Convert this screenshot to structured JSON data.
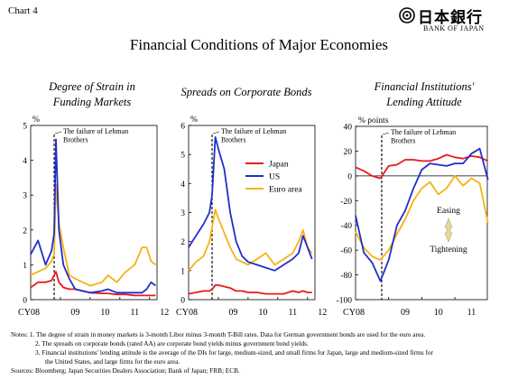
{
  "header": {
    "chart_label": "Chart 4",
    "title": "Financial Conditions of Major Economies",
    "logo_text": "日本銀行",
    "logo_subtext": "BANK OF JAPAN"
  },
  "colors": {
    "japan": "#e8181f",
    "us": "#1f2fc9",
    "euro": "#f5b30f",
    "axis": "#000000",
    "arrow": "#e8d9a0"
  },
  "notes": {
    "line1": "Notes:  1. The degree of strain in money markets is 3-month Libor minus 3-month T-Bill rates. Data for German government bonds are used for the euro area.",
    "line2": "2. The spreads on corporate bonds (rated AA) are corporate bond yields minus government bond yields.",
    "line3": "3. Financial institutions' lending attitude is the average of the DIs for large, medium-sized, and small firms for Japan, large and medium-sized firms for",
    "line4": "the United States, and large firms for the euro area.",
    "sources": "Sources: Bloomberg; Japan Securities Dealers Association; Bank of Japan; FRB; ECB."
  },
  "chart_data": [
    {
      "type": "line",
      "title": "Degree of Strain in Funding Markets",
      "unit": "%",
      "x_ticks": [
        "CY08",
        "09",
        "10",
        "11",
        "12"
      ],
      "ylim": [
        0,
        5
      ],
      "y_ticks": [
        0,
        1,
        2,
        3,
        4,
        5
      ],
      "annotation": "The failure of Lehman Brothers",
      "x": [
        2008.0,
        2008.25,
        2008.5,
        2008.7,
        2008.79,
        2008.85,
        2008.95,
        2009.1,
        2009.3,
        2009.5,
        2009.75,
        2010.0,
        2010.4,
        2010.6,
        2010.9,
        2011.2,
        2011.5,
        2011.75,
        2011.9,
        2012.05,
        2012.2
      ],
      "series": [
        {
          "name": "Japan",
          "values": [
            0.35,
            0.5,
            0.5,
            0.55,
            0.7,
            0.8,
            0.5,
            0.35,
            0.3,
            0.3,
            0.25,
            0.2,
            0.18,
            0.18,
            0.15,
            0.15,
            0.12,
            0.12,
            0.12,
            0.12,
            0.12
          ]
        },
        {
          "name": "US",
          "values": [
            1.3,
            1.7,
            1.0,
            1.4,
            1.9,
            4.6,
            2.0,
            1.0,
            0.6,
            0.3,
            0.25,
            0.2,
            0.25,
            0.3,
            0.2,
            0.2,
            0.2,
            0.2,
            0.3,
            0.5,
            0.4
          ]
        },
        {
          "name": "Euro area",
          "values": [
            0.7,
            0.8,
            0.9,
            1.1,
            1.3,
            3.3,
            2.2,
            1.5,
            0.7,
            0.6,
            0.5,
            0.4,
            0.5,
            0.7,
            0.5,
            0.8,
            1.0,
            1.5,
            1.5,
            1.1,
            1.0
          ]
        }
      ]
    },
    {
      "type": "line",
      "title": "Spreads on Corporate Bonds",
      "unit": "%",
      "x_ticks": [
        "CY08",
        "09",
        "10",
        "11",
        "12"
      ],
      "ylim": [
        0,
        6
      ],
      "y_ticks": [
        0,
        1,
        2,
        3,
        4,
        5,
        6
      ],
      "legend_position": "right",
      "annotation": "The failure of Lehman Brothers",
      "x": [
        2008.0,
        2008.25,
        2008.5,
        2008.7,
        2008.79,
        2008.9,
        2009.0,
        2009.2,
        2009.4,
        2009.6,
        2009.8,
        2010.0,
        2010.3,
        2010.6,
        2010.9,
        2011.2,
        2011.5,
        2011.7,
        2011.85,
        2012.0,
        2012.15
      ],
      "series": [
        {
          "name": "Japan",
          "values": [
            0.2,
            0.25,
            0.3,
            0.3,
            0.35,
            0.5,
            0.5,
            0.45,
            0.4,
            0.3,
            0.3,
            0.25,
            0.25,
            0.2,
            0.2,
            0.2,
            0.3,
            0.25,
            0.3,
            0.25,
            0.25
          ]
        },
        {
          "name": "US",
          "values": [
            1.8,
            2.2,
            2.6,
            3.0,
            3.6,
            5.6,
            5.2,
            4.5,
            3.0,
            2.0,
            1.5,
            1.3,
            1.2,
            1.1,
            1.0,
            1.2,
            1.4,
            1.6,
            2.2,
            1.8,
            1.4
          ]
        },
        {
          "name": "Euro area",
          "values": [
            1.0,
            1.3,
            1.5,
            2.0,
            2.5,
            3.1,
            2.8,
            2.3,
            1.8,
            1.4,
            1.3,
            1.2,
            1.4,
            1.6,
            1.2,
            1.4,
            1.6,
            2.0,
            2.4,
            1.8,
            1.6
          ]
        }
      ]
    },
    {
      "type": "line",
      "title": "Financial Institutions' Lending Attitude",
      "unit": "% points",
      "x_ticks": [
        "CY08",
        "09",
        "10",
        "11"
      ],
      "ylim": [
        -100,
        40
      ],
      "y_ticks": [
        -100,
        -80,
        -60,
        -40,
        -20,
        0,
        20,
        40
      ],
      "annotation": "The failure of Lehman Brothers",
      "arrow_labels": [
        "Easing",
        "Tightening"
      ],
      "x": [
        2008.0,
        2008.25,
        2008.5,
        2008.75,
        2009.0,
        2009.25,
        2009.5,
        2009.75,
        2010.0,
        2010.25,
        2010.5,
        2010.75,
        2011.0,
        2011.25,
        2011.5,
        2011.75,
        2012.0
      ],
      "series": [
        {
          "name": "Japan",
          "values": [
            7,
            4,
            0,
            -2,
            8,
            9,
            13,
            13,
            12,
            12,
            14,
            17,
            15,
            14,
            16,
            15,
            12
          ]
        },
        {
          "name": "US",
          "values": [
            -32,
            -62,
            -70,
            -85,
            -68,
            -40,
            -28,
            -10,
            5,
            10,
            9,
            8,
            10,
            10,
            18,
            22,
            -3
          ]
        },
        {
          "name": "Euro area",
          "values": [
            -45,
            -58,
            -65,
            -68,
            -60,
            -47,
            -35,
            -20,
            -10,
            -5,
            -15,
            -10,
            0,
            -8,
            -2,
            -6,
            -38
          ]
        }
      ]
    }
  ]
}
